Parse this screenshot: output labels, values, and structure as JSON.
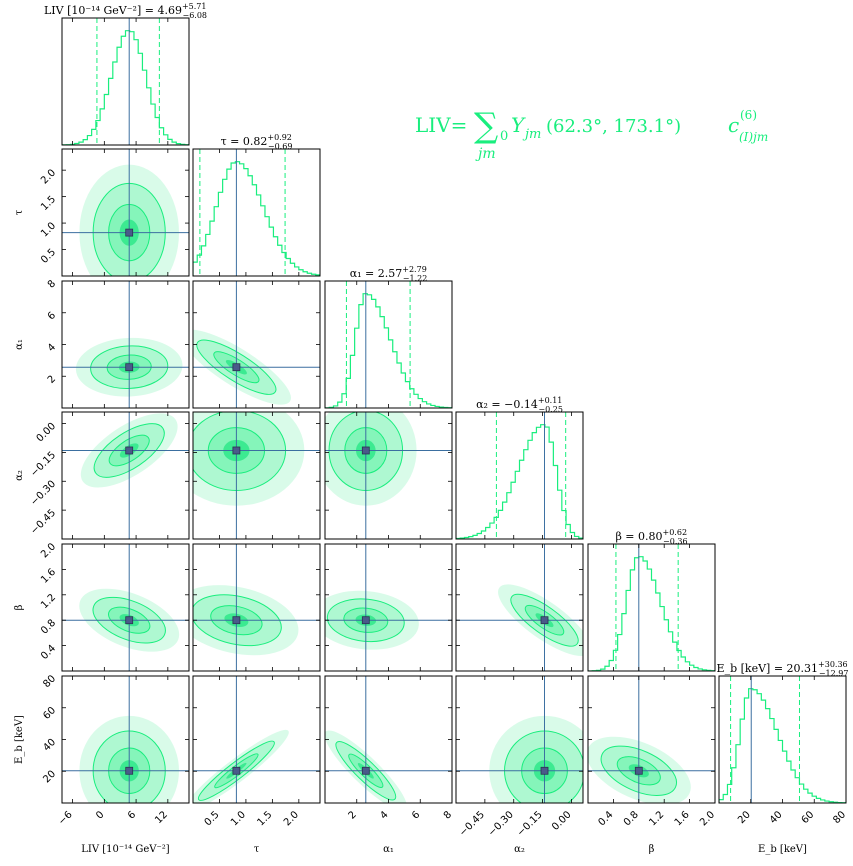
{
  "colors": {
    "accent": "#19ee7e",
    "fill_outer": "#c9fae0",
    "fill_mid": "#7ef5b6",
    "fill_inner": "#2fe88a",
    "truth": "#3b6fa0",
    "truth_marker": "#4a5a8a"
  },
  "formula": {
    "lhs": "LIV=",
    "sum": "∑",
    "sub_sum": "jm",
    "sub_zero": "0",
    "body": "Y",
    "body_sub": "jm",
    "args": "(62.3°, 173.1°)",
    "c": "c",
    "c_sup": "(6)",
    "c_sub": "(I)jm"
  },
  "chart_data": {
    "type": "scatter",
    "subtype": "corner-plot",
    "parameters": [
      {
        "key": "liv",
        "label": "LIV [10⁻¹⁴ GeV⁻²]",
        "title_prefix": "LIV [10⁻¹⁴ GeV⁻²] = ",
        "median": "4.69",
        "err_up": "+5.71",
        "err_down": "−6.08",
        "range": [
          -8,
          16
        ],
        "ticks": [
          -6,
          0,
          6,
          12
        ],
        "tick_labels": [
          "−6",
          "0",
          "6",
          "12"
        ],
        "truth": 4.7,
        "q_low": -1.4,
        "q_high": 10.4,
        "sigma": 3.0
      },
      {
        "key": "tau",
        "label": "τ",
        "title_prefix": "τ = ",
        "median": "0.82",
        "err_up": "+0.92",
        "err_down": "−0.69",
        "range": [
          0.0,
          2.4
        ],
        "ticks": [
          0.5,
          1.0,
          1.5,
          2.0
        ],
        "tick_labels": [
          "0.5",
          "1.0",
          "1.5",
          "2.0"
        ],
        "truth": 0.82,
        "q_low": 0.13,
        "q_high": 1.74,
        "sigma": 0.5
      },
      {
        "key": "alpha1",
        "label": "α₁",
        "title_prefix": "α₁ = ",
        "median": "2.57",
        "err_up": "+2.79",
        "err_down": "−1.22",
        "range": [
          0,
          8
        ],
        "ticks": [
          2,
          4,
          6,
          8
        ],
        "tick_labels": [
          "2",
          "4",
          "6",
          "8"
        ],
        "truth": 2.57,
        "q_low": 1.35,
        "q_high": 5.36,
        "sigma": 1.1
      },
      {
        "key": "alpha2",
        "label": "α₂",
        "title_prefix": "α₂ = ",
        "median": "−0.14",
        "err_up": "+0.11",
        "err_down": "−0.25",
        "range": [
          -0.6,
          0.06
        ],
        "ticks": [
          -0.45,
          -0.3,
          -0.15,
          0.0
        ],
        "tick_labels": [
          "−0.45",
          "−0.30",
          "−0.15",
          "0.00"
        ],
        "truth": -0.14,
        "q_low": -0.39,
        "q_high": -0.03,
        "sigma": 0.07
      },
      {
        "key": "beta",
        "label": "β",
        "title_prefix": "β = ",
        "median": "0.80",
        "err_up": "+0.62",
        "err_down": "−0.36",
        "range": [
          0.0,
          2.0
        ],
        "ticks": [
          0.4,
          0.8,
          1.2,
          1.6,
          2.0
        ],
        "tick_labels": [
          "0.4",
          "0.8",
          "1.2",
          "1.6",
          "2.0"
        ],
        "truth": 0.8,
        "q_low": 0.44,
        "q_high": 1.42,
        "sigma": 0.22
      },
      {
        "key": "eb",
        "label": "E_b [keV]",
        "title_prefix": "E_b [keV] = ",
        "median": "20.31",
        "err_up": "+30.36",
        "err_down": "−12.97",
        "range": [
          0,
          80
        ],
        "ticks": [
          20,
          40,
          60,
          80
        ],
        "tick_labels": [
          "20",
          "40",
          "60",
          "80"
        ],
        "truth": 20.3,
        "q_low": 7.3,
        "q_high": 50.7,
        "sigma": 10
      }
    ]
  }
}
